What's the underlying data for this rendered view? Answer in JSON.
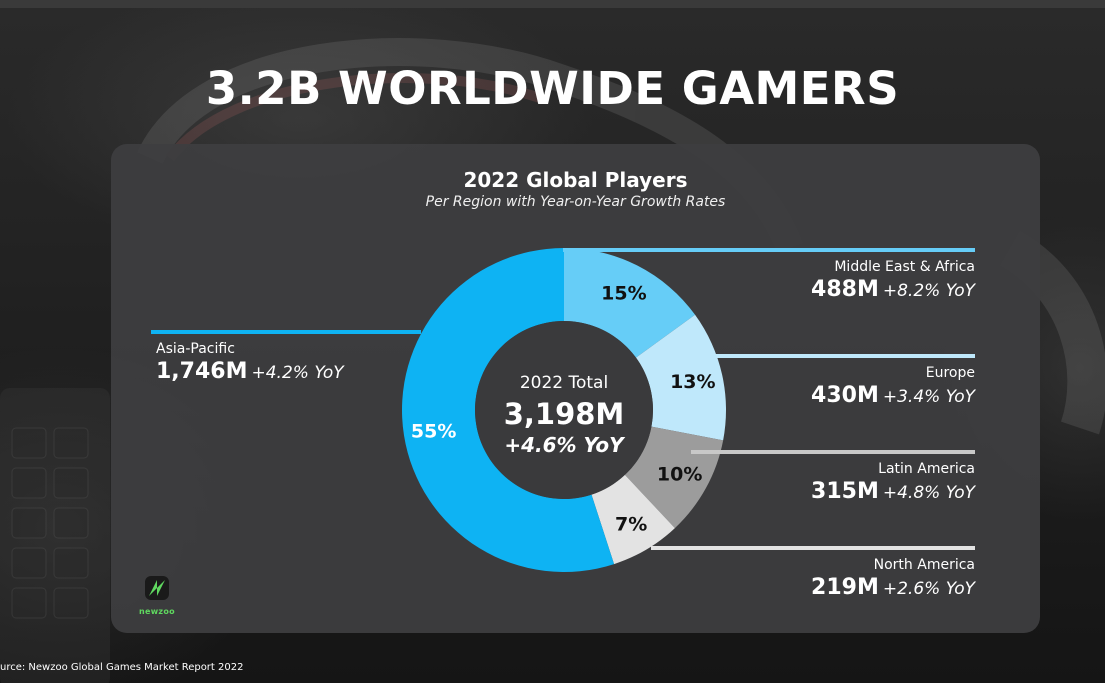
{
  "page": {
    "title": "3.2B WORLDWIDE GAMERS",
    "source": "urce: Newzoo Global Games Market Report 2022",
    "logo_text": "newzoo"
  },
  "chart_data": {
    "type": "pie",
    "title": "2022 Global Players",
    "subtitle": "Per Region with Year-on-Year Growth Rates",
    "center": {
      "label": "2022 Total",
      "value": "3,198M",
      "growth": "+4.6% YoY"
    },
    "series": [
      {
        "name": "Middle East & Africa",
        "value_label": "488M",
        "growth": "+8.2% YoY",
        "percent": 15,
        "percent_label": "15%",
        "color": "#66cdf7",
        "label_color": "#111111"
      },
      {
        "name": "Europe",
        "value_label": "430M",
        "growth": "+3.4% YoY",
        "percent": 13,
        "percent_label": "13%",
        "color": "#bfe8fb",
        "label_color": "#111111"
      },
      {
        "name": "Latin America",
        "value_label": "315M",
        "growth": "+4.8% YoY",
        "percent": 10,
        "percent_label": "10%",
        "color": "#9c9c9c",
        "label_color": "#111111"
      },
      {
        "name": "North America",
        "value_label": "219M",
        "growth": "+2.6% YoY",
        "percent": 7,
        "percent_label": "7%",
        "color": "#e3e3e3",
        "label_color": "#111111"
      },
      {
        "name": "Asia-Pacific",
        "value_label": "1,746M",
        "growth": "+4.2% YoY",
        "percent": 55,
        "percent_label": "55%",
        "color": "#0eb3f3",
        "label_color": "#ffffff"
      }
    ],
    "legend": "sides",
    "colors": {
      "hole": "#3a3a3c",
      "separator_bright": "#66cdf7",
      "separator_light": "#bfe8fb",
      "separator_gray": "#c8c8c8",
      "separator_white": "#e3e3e3"
    }
  }
}
